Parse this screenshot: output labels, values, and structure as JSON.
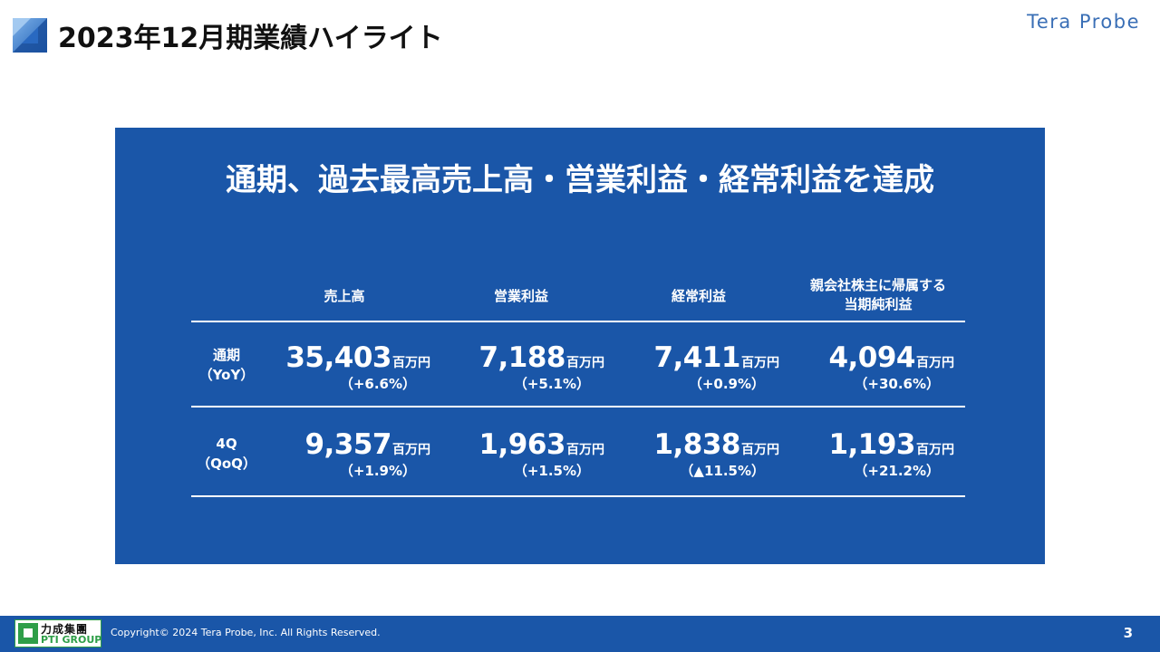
{
  "header": {
    "title": "2023年12月期業績ハイライト",
    "brand": "Tera Probe"
  },
  "panel": {
    "headline": "通期、過去最高売上高・営業利益・経常利益を達成",
    "columns": [
      {
        "line1": "売上高",
        "line2": ""
      },
      {
        "line1": "営業利益",
        "line2": ""
      },
      {
        "line1": "経常利益",
        "line2": ""
      },
      {
        "line1": "親会社株主に帰属する",
        "line2": "当期純利益"
      }
    ],
    "unit": "百万円",
    "rows": [
      {
        "label_main": "通期",
        "label_sub": "（YoY）",
        "cells": [
          {
            "value": "35,403",
            "change": "（+6.6%）"
          },
          {
            "value": "7,188",
            "change": "（+5.1%）"
          },
          {
            "value": "7,411",
            "change": "（+0.9%）"
          },
          {
            "value": "4,094",
            "change": "（+30.6%）"
          }
        ]
      },
      {
        "label_main": "4Q",
        "label_sub": "（QoQ）",
        "cells": [
          {
            "value": "9,357",
            "change": "（+1.9%）"
          },
          {
            "value": "1,963",
            "change": "（+1.5%）"
          },
          {
            "value": "1,838",
            "change": "（▲11.5%）"
          },
          {
            "value": "1,193",
            "change": "（+21.2%）"
          }
        ]
      }
    ]
  },
  "footer": {
    "logo_cn": "力成集團",
    "logo_en": "PTI GROUP",
    "copyright": "Copyright©  2024 Tera Probe, Inc. All Rights Reserved.",
    "page_number": "3"
  },
  "colors": {
    "primary_blue": "#1a56a8",
    "brand_text": "#3a6fb6",
    "logo_green": "#2e9e48"
  }
}
